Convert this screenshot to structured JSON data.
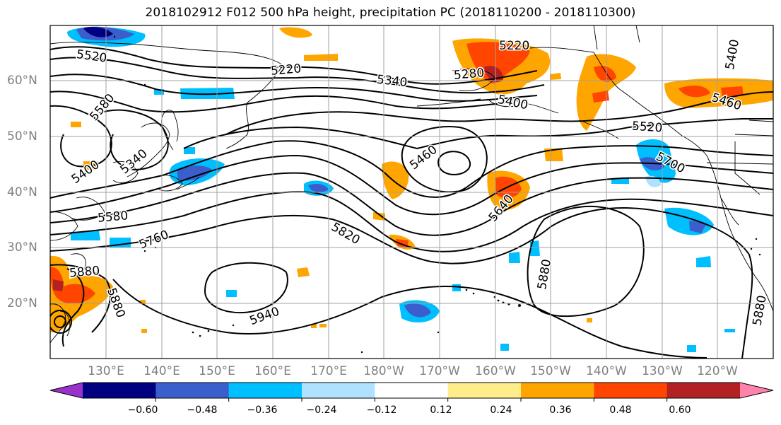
{
  "title": "2018102912 F012 500 hPa height, precipitation PC (2018110200 - 2018110300)",
  "map": {
    "lat_labels": [
      "60°N",
      "50°N",
      "40°N",
      "30°N",
      "20°N"
    ],
    "lon_labels": [
      "130°E",
      "140°E",
      "150°E",
      "160°E",
      "170°E",
      "180°W",
      "170°W",
      "160°W",
      "150°W",
      "140°W",
      "130°W",
      "120°W"
    ],
    "contour_labels": [
      "5520",
      "5580",
      "5220",
      "5340",
      "5220",
      "5280",
      "5400",
      "5400",
      "5460",
      "5520",
      "5400",
      "5340",
      "5460",
      "5700",
      "5640",
      "5580",
      "5760",
      "5820",
      "5880",
      "5880",
      "5940",
      "5880",
      "5880"
    ],
    "land_color": "#ffffff",
    "line_color": "#000000",
    "grid_color": "#a0a0a0"
  },
  "colorbar": {
    "colors": [
      "#9932cc",
      "#000080",
      "#3a5fcd",
      "#00bfff",
      "#b0e2ff",
      "#ffffff",
      "#ffec8b",
      "#ffa500",
      "#ff4500",
      "#b22222",
      "#ff82ab"
    ],
    "tick_labels": [
      "−0.60",
      "−0.48",
      "−0.36",
      "−0.24",
      "−0.12",
      "0.12",
      "0.24",
      "0.36",
      "0.48",
      "0.60"
    ]
  }
}
